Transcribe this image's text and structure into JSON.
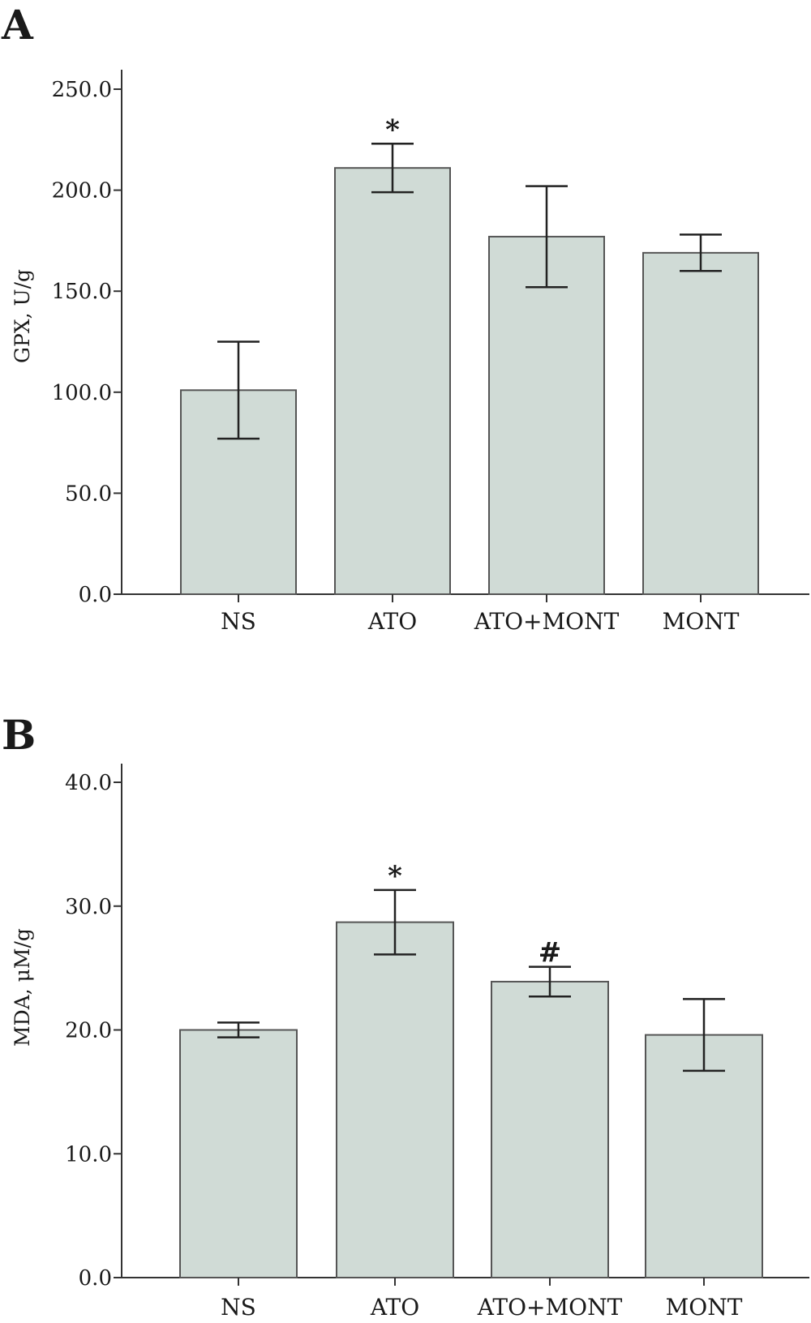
{
  "chart_data": [
    {
      "type": "bar",
      "panel": "A",
      "ylabel": "GPX, U/g",
      "xlabel": "",
      "categories": [
        "NS",
        "ATO",
        "ATO+MONT",
        "MONT"
      ],
      "values": [
        101,
        211,
        177,
        169
      ],
      "error": [
        24,
        12,
        25,
        9
      ],
      "annotations": [
        "",
        "*",
        "",
        ""
      ],
      "ylim": [
        0,
        250
      ],
      "yticks": [
        0,
        50,
        100,
        150,
        200,
        250
      ],
      "ytick_labels": [
        "0.0",
        "50.0",
        "100.0",
        "150.0",
        "200.0",
        "250.0"
      ],
      "bar_color": "#d0dbd6",
      "grid": false
    },
    {
      "type": "bar",
      "panel": "B",
      "ylabel": "MDA, μM/g",
      "xlabel": "",
      "categories": [
        "NS",
        "ATO",
        "ATO+MONT",
        "MONT"
      ],
      "values": [
        20.0,
        28.7,
        23.9,
        19.6
      ],
      "error": [
        0.6,
        2.6,
        1.2,
        2.9
      ],
      "annotations": [
        "",
        "*",
        "#",
        ""
      ],
      "ylim": [
        0,
        40
      ],
      "yticks": [
        0,
        10,
        20,
        30,
        40
      ],
      "ytick_labels": [
        "0.0",
        "10.0",
        "20.0",
        "30.0",
        "40.0"
      ],
      "bar_color": "#d0dbd6",
      "grid": false
    }
  ]
}
